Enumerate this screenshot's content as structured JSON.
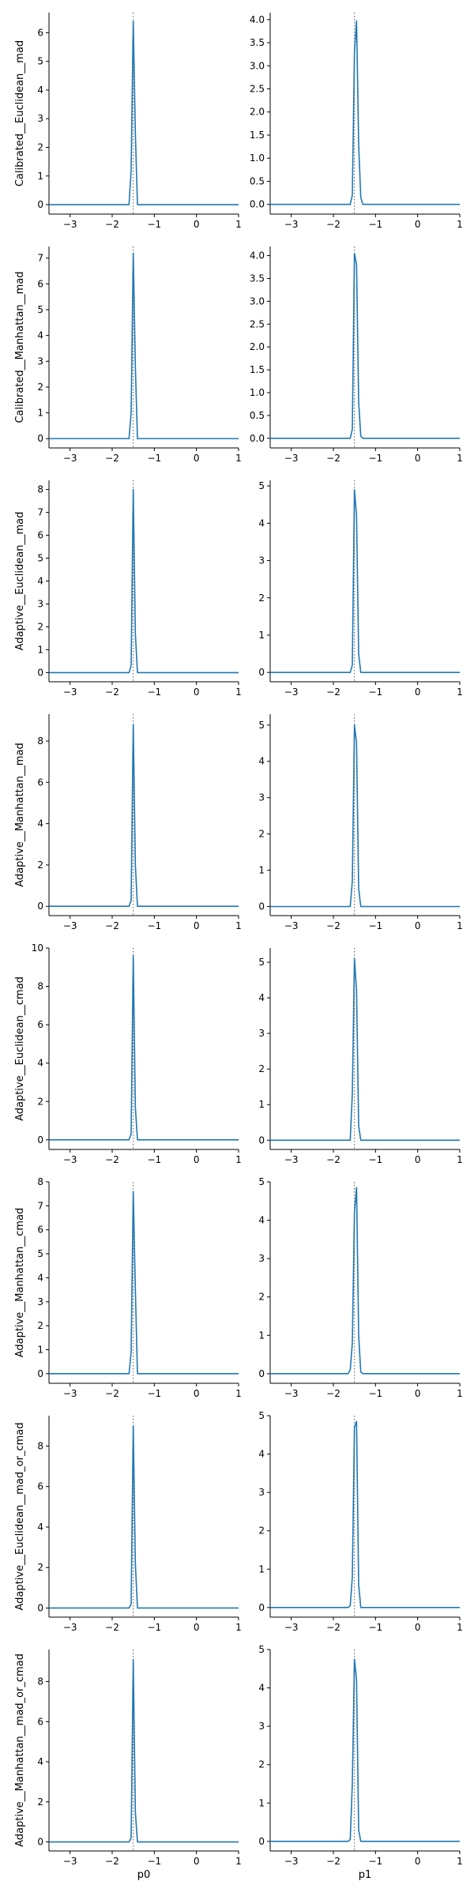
{
  "figure": {
    "rows": [
      "Calibrated__Euclidean__mad",
      "Calibrated__Manhattan__mad",
      "Adaptive__Euclidean__mad",
      "Adaptive__Manhattan__mad",
      "Adaptive__Euclidean__cmad",
      "Adaptive__Manhattan__cmad",
      "Adaptive__Euclidean__mad_or_cmad",
      "Adaptive__Manhattan__mad_or_cmad"
    ],
    "columns": [
      "p0",
      "p1"
    ],
    "line_color": "#1f77b4",
    "reference_line_color": "#555555"
  },
  "chart_data": [
    {
      "type": "line",
      "row": 0,
      "col": 0,
      "ylabel": "Calibrated__Euclidean__mad",
      "xlabel": "",
      "xlim": [
        -3.5,
        1
      ],
      "ylim": [
        -0.33,
        6.7
      ],
      "xticks": [
        -3,
        -2,
        -1,
        0,
        1
      ],
      "yticks": [
        0,
        1,
        2,
        3,
        4,
        5,
        6
      ],
      "reference_x": -1.5,
      "x": [
        -3.5,
        -1.6,
        -1.55,
        -1.5,
        -1.45,
        -1.4,
        -1.35,
        1
      ],
      "y": [
        0,
        0,
        1.2,
        6.4,
        2.5,
        0,
        0,
        0
      ]
    },
    {
      "type": "line",
      "row": 0,
      "col": 1,
      "ylabel": "",
      "xlabel": "",
      "xlim": [
        -3.5,
        1
      ],
      "ylim": [
        -0.21,
        4.15
      ],
      "xticks": [
        -3,
        -2,
        -1,
        0,
        1
      ],
      "yticks": [
        0.0,
        0.5,
        1.0,
        1.5,
        2.0,
        2.5,
        3.0,
        3.5,
        4.0
      ],
      "reference_x": -1.5,
      "x": [
        -3.5,
        -1.6,
        -1.55,
        -1.5,
        -1.45,
        -1.4,
        -1.35,
        -1.3,
        1
      ],
      "y": [
        0,
        0,
        0.2,
        3.3,
        3.97,
        1.3,
        0.15,
        0,
        0
      ]
    },
    {
      "type": "line",
      "row": 1,
      "col": 0,
      "ylabel": "Calibrated__Manhattan__mad",
      "xlabel": "",
      "xlim": [
        -3.5,
        1
      ],
      "ylim": [
        -0.36,
        7.45
      ],
      "xticks": [
        -3,
        -2,
        -1,
        0,
        1
      ],
      "yticks": [
        0,
        1,
        2,
        3,
        4,
        5,
        6,
        7
      ],
      "reference_x": -1.5,
      "x": [
        -3.5,
        -1.6,
        -1.55,
        -1.5,
        -1.45,
        -1.4,
        -1.35,
        1
      ],
      "y": [
        0,
        0,
        1.0,
        7.2,
        2.8,
        0,
        0,
        0
      ]
    },
    {
      "type": "line",
      "row": 1,
      "col": 1,
      "ylabel": "",
      "xlabel": "",
      "xlim": [
        -3.5,
        1
      ],
      "ylim": [
        -0.21,
        4.2
      ],
      "xticks": [
        -3,
        -2,
        -1,
        0,
        1
      ],
      "yticks": [
        0.0,
        0.5,
        1.0,
        1.5,
        2.0,
        2.5,
        3.0,
        3.5,
        4.0
      ],
      "reference_x": -1.5,
      "x": [
        -3.5,
        -1.6,
        -1.55,
        -1.5,
        -1.45,
        -1.4,
        -1.35,
        -1.3,
        1
      ],
      "y": [
        0,
        0,
        0.2,
        4.05,
        3.8,
        0.8,
        0.05,
        0,
        0
      ]
    },
    {
      "type": "line",
      "row": 2,
      "col": 0,
      "ylabel": "Adaptive__Euclidean__mad",
      "xlabel": "",
      "xlim": [
        -3.5,
        1
      ],
      "ylim": [
        -0.4,
        8.4
      ],
      "xticks": [
        -3,
        -2,
        -1,
        0,
        1
      ],
      "yticks": [
        0,
        1,
        2,
        3,
        4,
        5,
        6,
        7,
        8
      ],
      "reference_x": -1.5,
      "x": [
        -3.5,
        -1.6,
        -1.55,
        -1.5,
        -1.45,
        -1.4,
        -1.35,
        1
      ],
      "y": [
        0,
        0,
        0.3,
        8.0,
        1.7,
        0,
        0,
        0
      ]
    },
    {
      "type": "line",
      "row": 2,
      "col": 1,
      "ylabel": "",
      "xlabel": "",
      "xlim": [
        -3.5,
        1
      ],
      "ylim": [
        -0.25,
        5.15
      ],
      "xticks": [
        -3,
        -2,
        -1,
        0,
        1
      ],
      "yticks": [
        0,
        1,
        2,
        3,
        4,
        5
      ],
      "reference_x": -1.5,
      "x": [
        -3.5,
        -1.6,
        -1.55,
        -1.5,
        -1.45,
        -1.4,
        -1.35,
        -1.3,
        1
      ],
      "y": [
        0,
        0,
        0.2,
        4.9,
        4.2,
        0.5,
        0,
        0,
        0
      ]
    },
    {
      "type": "line",
      "row": 3,
      "col": 0,
      "ylabel": "Adaptive__Manhattan__mad",
      "xlabel": "",
      "xlim": [
        -3.5,
        1
      ],
      "ylim": [
        -0.45,
        9.3
      ],
      "xticks": [
        -3,
        -2,
        -1,
        0,
        1
      ],
      "yticks": [
        0,
        2,
        4,
        6,
        8
      ],
      "reference_x": -1.5,
      "x": [
        -3.5,
        -1.6,
        -1.55,
        -1.5,
        -1.45,
        -1.4,
        -1.35,
        1
      ],
      "y": [
        0,
        0,
        0.3,
        8.8,
        2.0,
        0,
        0,
        0
      ]
    },
    {
      "type": "line",
      "row": 3,
      "col": 1,
      "ylabel": "",
      "xlabel": "",
      "xlim": [
        -3.5,
        1
      ],
      "ylim": [
        -0.25,
        5.3
      ],
      "xticks": [
        -3,
        -2,
        -1,
        0,
        1
      ],
      "yticks": [
        0,
        1,
        2,
        3,
        4,
        5
      ],
      "reference_x": -1.5,
      "x": [
        -3.5,
        -1.6,
        -1.55,
        -1.5,
        -1.45,
        -1.4,
        -1.35,
        -1.3,
        1
      ],
      "y": [
        0,
        0,
        0.7,
        5.0,
        4.5,
        0.5,
        0,
        0,
        0
      ]
    },
    {
      "type": "line",
      "row": 4,
      "col": 0,
      "ylabel": "Adaptive__Euclidean__cmad",
      "xlabel": "",
      "xlim": [
        -3.5,
        1
      ],
      "ylim": [
        -0.5,
        10.0
      ],
      "xticks": [
        -3,
        -2,
        -1,
        0,
        1
      ],
      "yticks": [
        0,
        2,
        4,
        6,
        8,
        10
      ],
      "reference_x": -1.5,
      "x": [
        -3.5,
        -1.6,
        -1.55,
        -1.5,
        -1.45,
        -1.4,
        -1.35,
        1
      ],
      "y": [
        0,
        0,
        0.3,
        9.6,
        1.7,
        0,
        0,
        0
      ]
    },
    {
      "type": "line",
      "row": 4,
      "col": 1,
      "ylabel": "",
      "xlabel": "",
      "xlim": [
        -3.5,
        1
      ],
      "ylim": [
        -0.26,
        5.4
      ],
      "xticks": [
        -3,
        -2,
        -1,
        0,
        1
      ],
      "yticks": [
        0,
        1,
        2,
        3,
        4,
        5
      ],
      "reference_x": -1.5,
      "x": [
        -3.5,
        -1.6,
        -1.55,
        -1.5,
        -1.45,
        -1.4,
        -1.35,
        -1.3,
        1
      ],
      "y": [
        0,
        0,
        1.3,
        5.1,
        4.2,
        0.4,
        0,
        0,
        0
      ]
    },
    {
      "type": "line",
      "row": 5,
      "col": 0,
      "ylabel": "Adaptive__Manhattan__cmad",
      "xlabel": "",
      "xlim": [
        -3.5,
        1
      ],
      "ylim": [
        -0.4,
        8.0
      ],
      "xticks": [
        -3,
        -2,
        -1,
        0,
        1
      ],
      "yticks": [
        0,
        1,
        2,
        3,
        4,
        5,
        6,
        7,
        8
      ],
      "reference_x": -1.5,
      "x": [
        -3.5,
        -1.6,
        -1.55,
        -1.5,
        -1.45,
        -1.4,
        -1.35,
        1
      ],
      "y": [
        0,
        0,
        0.9,
        7.6,
        3.5,
        0,
        0,
        0
      ]
    },
    {
      "type": "line",
      "row": 5,
      "col": 1,
      "ylabel": "",
      "xlabel": "",
      "xlim": [
        -3.5,
        1
      ],
      "ylim": [
        -0.25,
        5.0
      ],
      "xticks": [
        -3,
        -2,
        -1,
        0,
        1
      ],
      "yticks": [
        0,
        1,
        2,
        3,
        4,
        5
      ],
      "reference_x": -1.5,
      "x": [
        -3.5,
        -1.65,
        -1.6,
        -1.55,
        -1.5,
        -1.45,
        -1.4,
        -1.35,
        -1.3,
        1
      ],
      "y": [
        0,
        0,
        0.1,
        0.8,
        4.2,
        4.85,
        1.0,
        0.05,
        0,
        0
      ]
    },
    {
      "type": "line",
      "row": 6,
      "col": 0,
      "ylabel": "Adaptive__Euclidean__mad_or_cmad",
      "xlabel": "",
      "xlim": [
        -3.5,
        1
      ],
      "ylim": [
        -0.45,
        9.5
      ],
      "xticks": [
        -3,
        -2,
        -1,
        0,
        1
      ],
      "yticks": [
        0,
        2,
        4,
        6,
        8
      ],
      "reference_x": -1.5,
      "x": [
        -3.5,
        -1.6,
        -1.55,
        -1.5,
        -1.45,
        -1.4,
        -1.35,
        1
      ],
      "y": [
        0,
        0,
        0.2,
        9.0,
        2.2,
        0,
        0,
        0
      ]
    },
    {
      "type": "line",
      "row": 6,
      "col": 1,
      "ylabel": "",
      "xlabel": "",
      "xlim": [
        -3.5,
        1
      ],
      "ylim": [
        -0.25,
        5.0
      ],
      "xticks": [
        -3,
        -2,
        -1,
        0,
        1
      ],
      "yticks": [
        0,
        1,
        2,
        3,
        4,
        5
      ],
      "reference_x": -1.5,
      "x": [
        -3.5,
        -1.65,
        -1.6,
        -1.55,
        -1.5,
        -1.45,
        -1.4,
        -1.35,
        -1.3,
        1
      ],
      "y": [
        0,
        0,
        0.05,
        0.8,
        4.7,
        4.85,
        0.6,
        0,
        0,
        0
      ]
    },
    {
      "type": "line",
      "row": 7,
      "col": 0,
      "ylabel": "Adaptive__Manhattan__mad_or_cmad",
      "xlabel": "p0",
      "xlim": [
        -3.5,
        1
      ],
      "ylim": [
        -0.45,
        9.6
      ],
      "xticks": [
        -3,
        -2,
        -1,
        0,
        1
      ],
      "yticks": [
        0,
        2,
        4,
        6,
        8
      ],
      "reference_x": -1.5,
      "x": [
        -3.5,
        -1.6,
        -1.55,
        -1.5,
        -1.45,
        -1.4,
        -1.35,
        1
      ],
      "y": [
        0,
        0,
        0.2,
        9.1,
        1.5,
        0,
        0,
        0
      ]
    },
    {
      "type": "line",
      "row": 7,
      "col": 1,
      "ylabel": "",
      "xlabel": "p1",
      "xlim": [
        -3.5,
        1
      ],
      "ylim": [
        -0.25,
        5.0
      ],
      "xticks": [
        -3,
        -2,
        -1,
        0,
        1
      ],
      "yticks": [
        0,
        1,
        2,
        3,
        4,
        5
      ],
      "reference_x": -1.5,
      "x": [
        -3.5,
        -1.65,
        -1.6,
        -1.55,
        -1.5,
        -1.45,
        -1.4,
        -1.35,
        -1.3,
        1
      ],
      "y": [
        0,
        0,
        0.05,
        1.5,
        4.75,
        4.2,
        0.3,
        0,
        0,
        0
      ]
    }
  ]
}
